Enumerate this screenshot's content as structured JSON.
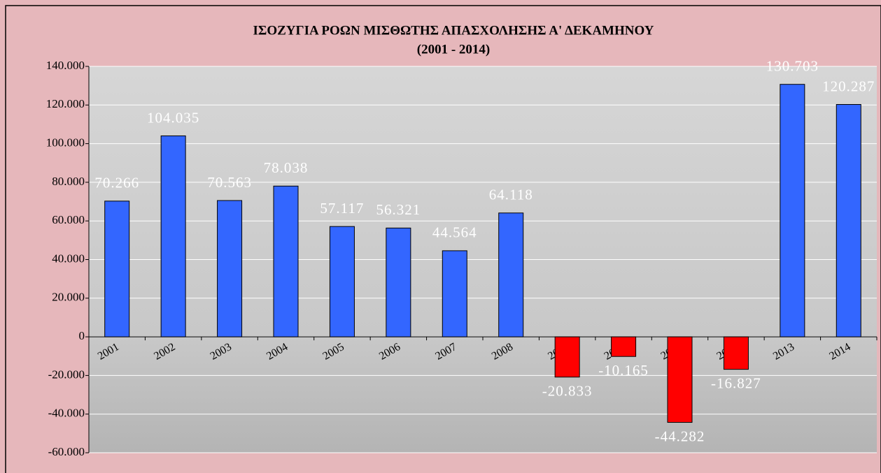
{
  "chart_data": {
    "type": "bar",
    "title": "ΙΣΟΖΥΓΙΑ ΡΟΩΝ ΜΙΣΘΩΤΗΣ ΑΠΑΣΧΟΛΗΣΗΣ Α' ΔΕΚΑΜΗΝΟΥ",
    "subtitle": "(2001 - 2014)",
    "categories": [
      "2001",
      "2002",
      "2003",
      "2004",
      "2005",
      "2006",
      "2007",
      "2008",
      "2009",
      "2010",
      "2011",
      "2012",
      "2013",
      "2014"
    ],
    "values": [
      70266,
      104035,
      70563,
      78038,
      57117,
      56321,
      44564,
      64118,
      -20833,
      -10165,
      -44282,
      -16827,
      130703,
      120287
    ],
    "value_labels": [
      "70.266",
      "104.035",
      "70.563",
      "78.038",
      "57.117",
      "56.321",
      "44.564",
      "64.118",
      "-20.833",
      "-10.165",
      "-44.282",
      "-16.827",
      "130.703",
      "120.287"
    ],
    "color": "#3366FF",
    "negative_color": "#FF0000",
    "ylim": [
      -60000,
      140000
    ],
    "yticks": [
      {
        "value": -60000,
        "label": "-60.000"
      },
      {
        "value": -40000,
        "label": "-40.000"
      },
      {
        "value": -20000,
        "label": "-20.000"
      },
      0,
      {
        "value": 20000,
        "label": "20.000"
      },
      {
        "value": 40000,
        "label": "40.000"
      },
      {
        "value": 60000,
        "label": "60.000"
      },
      {
        "value": 80000,
        "label": "80.000"
      },
      {
        "value": 100000,
        "label": "100.000"
      },
      {
        "value": 120000,
        "label": "120.000"
      },
      {
        "value": 140000,
        "label": "140.000"
      }
    ],
    "grid": true
  }
}
